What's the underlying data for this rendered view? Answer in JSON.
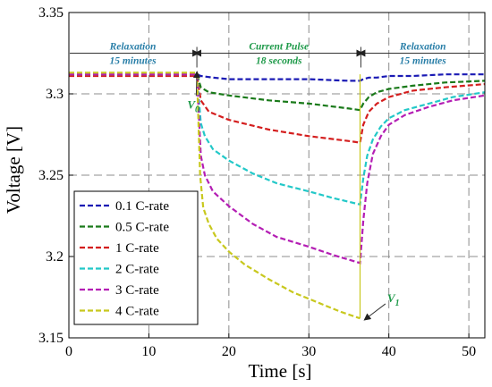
{
  "chart_data": {
    "type": "line",
    "title": "",
    "xlabel": "Time [s]",
    "ylabel": "Voltage [V]",
    "xlim": [
      0,
      52
    ],
    "ylim": [
      3.15,
      3.35
    ],
    "xticks": [
      0,
      10,
      20,
      30,
      40,
      50
    ],
    "yticks": [
      3.15,
      3.2,
      3.25,
      3.3,
      3.35
    ],
    "xtick_labels": [
      "0",
      "10",
      "20",
      "30",
      "40",
      "50"
    ],
    "ytick_labels": [
      "3.15",
      "3.2",
      "3.25",
      "3.3",
      "3.35"
    ],
    "grid": true,
    "legend_position": "lower-left",
    "phases": [
      {
        "from": 0,
        "to": 16,
        "line1": "Relaxation",
        "line2": "15 minutes",
        "color": "#2a7fa8"
      },
      {
        "from": 16,
        "to": 36.5,
        "line1": "Current Pulse",
        "line2": "18 seconds",
        "color": "#1f9a4a"
      },
      {
        "from": 36.5,
        "to": 52,
        "line1": "Relaxation",
        "line2": "15 minutes",
        "color": "#2a7fa8"
      }
    ],
    "phase_arrow_y": 3.325,
    "annotations": [
      {
        "text": "V",
        "sub": "0",
        "point": [
          16,
          3.312
        ],
        "text_at": [
          14.8,
          3.291
        ],
        "color": "#1f9a4a"
      },
      {
        "text": "V",
        "sub": "1",
        "point": [
          37.2,
          3.162
        ],
        "text_at": [
          39.8,
          3.172
        ],
        "color": "#1f9a4a"
      }
    ],
    "series": [
      {
        "name": "0.1 C-rate",
        "color": "#1a1ab4",
        "x": [
          0,
          16,
          16.5,
          18,
          20,
          25,
          30,
          35,
          36.4,
          36.8,
          37.5,
          38.5,
          40,
          43,
          47,
          52
        ],
        "y": [
          3.312,
          3.312,
          3.311,
          3.31,
          3.309,
          3.309,
          3.309,
          3.308,
          3.308,
          3.309,
          3.31,
          3.31,
          3.311,
          3.311,
          3.312,
          3.312
        ]
      },
      {
        "name": "0.5 C-rate",
        "color": "#1a7a1a",
        "x": [
          0,
          16,
          16.5,
          17.5,
          20,
          25,
          30,
          35,
          36.4,
          36.8,
          37.5,
          38.5,
          40,
          43,
          47,
          52
        ],
        "y": [
          3.312,
          3.312,
          3.304,
          3.301,
          3.299,
          3.296,
          3.294,
          3.291,
          3.29,
          3.294,
          3.298,
          3.301,
          3.303,
          3.305,
          3.307,
          3.308
        ]
      },
      {
        "name": "1 C-rate",
        "color": "#d41e1e",
        "x": [
          0,
          16,
          16.5,
          17.5,
          20,
          25,
          30,
          35,
          36.4,
          36.8,
          37.5,
          38.5,
          40,
          43,
          47,
          52
        ],
        "y": [
          3.311,
          3.311,
          3.296,
          3.289,
          3.284,
          3.278,
          3.274,
          3.271,
          3.27,
          3.281,
          3.289,
          3.294,
          3.298,
          3.302,
          3.304,
          3.306
        ]
      },
      {
        "name": "2 C-rate",
        "color": "#22c8c8",
        "x": [
          0,
          16,
          16.5,
          17,
          18,
          20,
          23,
          26,
          30,
          33,
          36.4,
          36.8,
          37.3,
          38,
          39,
          40,
          42,
          45,
          48,
          52
        ],
        "y": [
          3.312,
          3.312,
          3.282,
          3.274,
          3.266,
          3.259,
          3.251,
          3.245,
          3.24,
          3.236,
          3.232,
          3.248,
          3.262,
          3.272,
          3.28,
          3.285,
          3.29,
          3.294,
          3.298,
          3.301
        ]
      },
      {
        "name": "3 C-rate",
        "color": "#b41eb4",
        "x": [
          0,
          16,
          16.5,
          17,
          18,
          20,
          23,
          26,
          30,
          33,
          36.4,
          36.8,
          37.3,
          38,
          39,
          40,
          42,
          45,
          48,
          52
        ],
        "y": [
          3.312,
          3.312,
          3.262,
          3.25,
          3.24,
          3.231,
          3.22,
          3.212,
          3.206,
          3.201,
          3.196,
          3.222,
          3.245,
          3.263,
          3.274,
          3.281,
          3.287,
          3.292,
          3.296,
          3.299
        ]
      },
      {
        "name": "4 C-rate",
        "color": "#c8c81e",
        "x": [
          0,
          16,
          16.4,
          16.8,
          17.5,
          18.5,
          20,
          22,
          25,
          28,
          31,
          34,
          36.4
        ],
        "y": [
          3.313,
          3.313,
          3.25,
          3.23,
          3.22,
          3.211,
          3.203,
          3.195,
          3.186,
          3.178,
          3.172,
          3.166,
          3.162
        ]
      }
    ]
  }
}
